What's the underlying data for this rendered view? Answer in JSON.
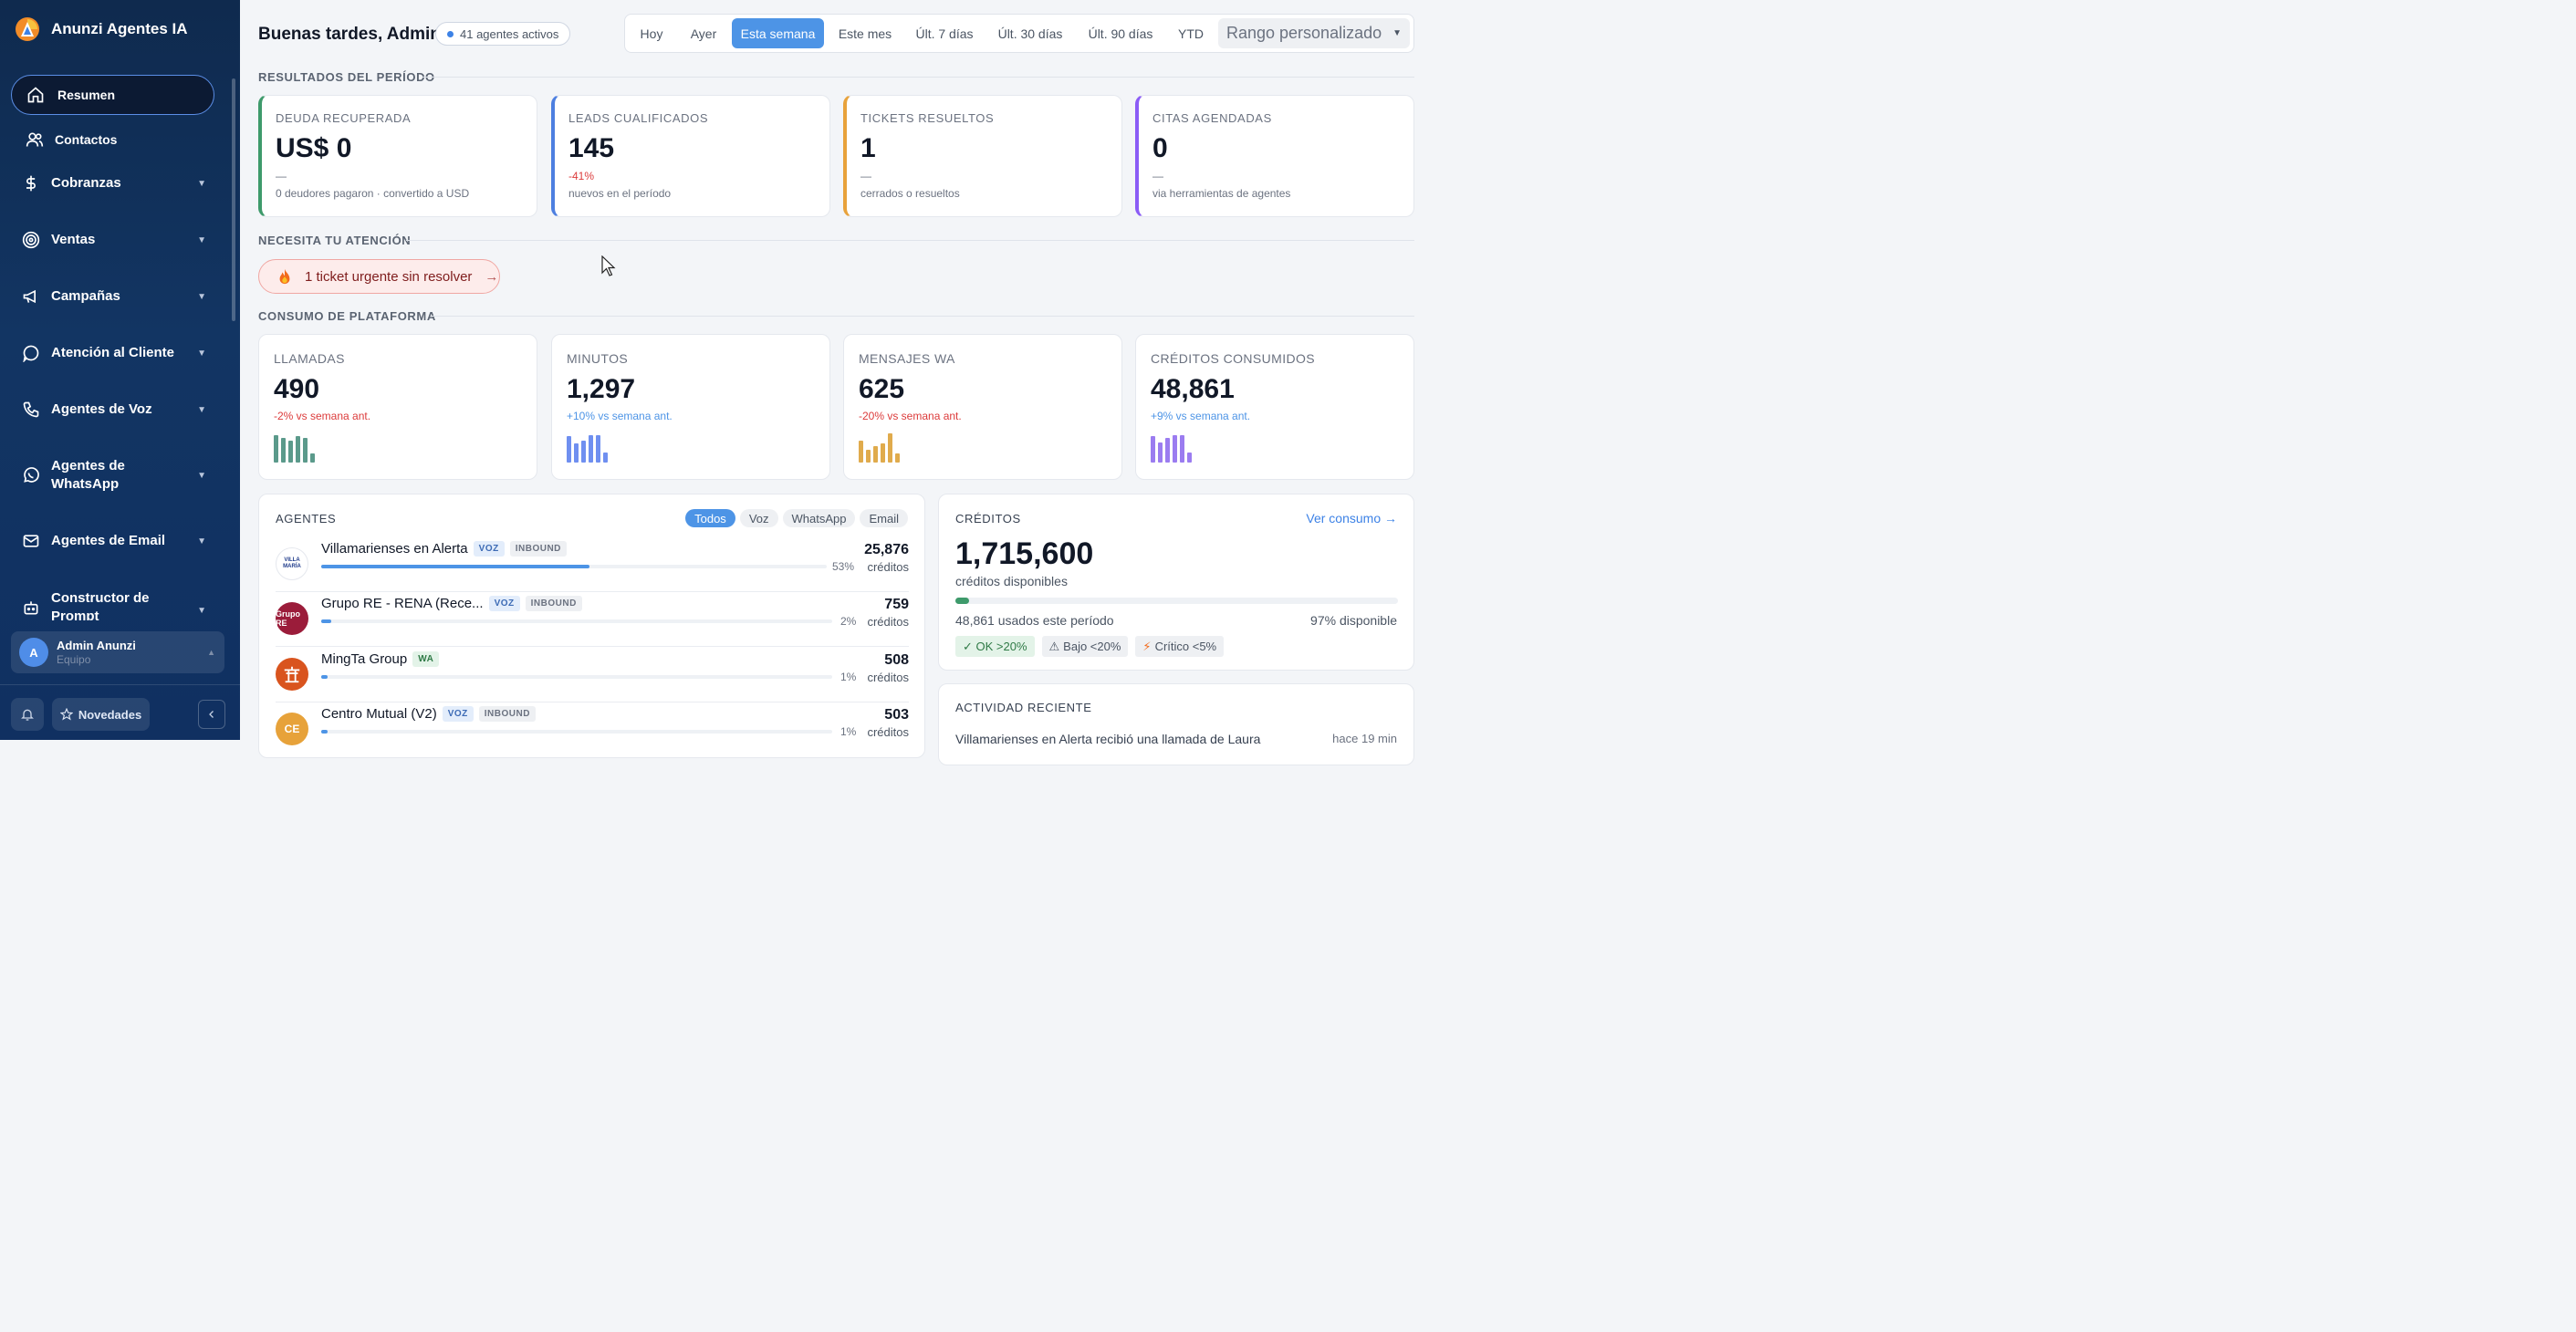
{
  "sidebar": {
    "brand": "Anunzi Agentes IA",
    "active_item": "Resumen",
    "items": [
      {
        "label": "Contactos",
        "icon": "users-icon"
      },
      {
        "label": "Cobranzas",
        "icon": "dollar-icon"
      },
      {
        "label": "Ventas",
        "icon": "target-icon"
      },
      {
        "label": "Campañas",
        "icon": "megaphone-icon"
      },
      {
        "label": "Atención al Cliente",
        "icon": "chat-bubble-icon"
      },
      {
        "label": "Agentes de Voz",
        "icon": "phone-icon"
      },
      {
        "label": "Agentes de WhatsApp",
        "icon": "whatsapp-icon"
      },
      {
        "label": "Agentes de Email",
        "icon": "mail-icon"
      },
      {
        "label": "Constructor de Prompt",
        "icon": "robot-icon"
      }
    ],
    "user": {
      "initial": "A",
      "name": "Admin Anunzi",
      "role": "Equipo"
    },
    "novedades": "Novedades"
  },
  "header": {
    "greeting": "Buenas tardes, Admin",
    "active_agents": "41 agentes activos",
    "ranges": [
      "Hoy",
      "Ayer",
      "Esta semana",
      "Este mes",
      "Últ. 7 días",
      "Últ. 30 días",
      "Últ. 90 días",
      "YTD"
    ],
    "active_range": "Esta semana",
    "custom_range": "Rango personalizado"
  },
  "sections": {
    "results": "RESULTADOS DEL PERÍODO",
    "attention": "NECESITA TU ATENCIÓN",
    "usage": "CONSUMO DE PLATAFORMA"
  },
  "kpis": [
    {
      "title": "DEUDA RECUPERADA",
      "value": "US$ 0",
      "delta": "—",
      "sub": "0 deudores pagaron · convertido a USD",
      "color": "#3e9a6b"
    },
    {
      "title": "LEADS CUALIFICADOS",
      "value": "145",
      "delta": "-41%",
      "sub": "nuevos en el período",
      "color": "#4d7fe0"
    },
    {
      "title": "TICKETS RESUELTOS",
      "value": "1",
      "delta": "—",
      "sub": "cerrados o resueltos",
      "color": "#e8a23b"
    },
    {
      "title": "CITAS AGENDADAS",
      "value": "0",
      "delta": "—",
      "sub": "via herramientas de agentes",
      "color": "#8b5cf6"
    }
  ],
  "attention": {
    "urgent": "1 ticket urgente sin resolver",
    "arrow": "→"
  },
  "usage": [
    {
      "title": "LLAMADAS",
      "value": "490",
      "delta": "-2% vs semana ant.",
      "trend": "down",
      "color": "#5b9a8b",
      "bars": [
        0.95,
        0.85,
        0.75,
        0.9,
        0.85,
        0.3
      ]
    },
    {
      "title": "MINUTOS",
      "value": "1,297",
      "delta": "+10% vs semana ant.",
      "trend": "up",
      "color": "#6f8ff0",
      "bars": [
        0.9,
        0.65,
        0.75,
        0.95,
        0.95,
        0.35
      ]
    },
    {
      "title": "MENSAJES WA",
      "value": "625",
      "delta": "-20% vs semana ant.",
      "trend": "down",
      "color": "#e0ab4c",
      "bars": [
        0.75,
        0.45,
        0.55,
        0.65,
        1.0,
        0.3
      ]
    },
    {
      "title": "CRÉDITOS CONSUMIDOS",
      "value": "48,861",
      "delta": "+9% vs semana ant.",
      "trend": "up",
      "color": "#9b7cf0",
      "bars": [
        0.9,
        0.7,
        0.85,
        0.95,
        0.95,
        0.35
      ]
    }
  ],
  "agents": {
    "title": "AGENTES",
    "filters": [
      "Todos",
      "Voz",
      "WhatsApp",
      "Email"
    ],
    "active_filter": "Todos",
    "unit": "créditos",
    "rows": [
      {
        "name": "Villamarienses en Alerta",
        "tags": [
          "VOZ",
          "INBOUND"
        ],
        "pct": "53%",
        "share": 0.53,
        "credits": "25,876",
        "logo": "VILLA MARÍA",
        "logo_bg": "#ffffff",
        "logo_fg": "#1e3a8a"
      },
      {
        "name": "Grupo RE - RENA (Rece...",
        "tags": [
          "VOZ",
          "INBOUND"
        ],
        "pct": "2%",
        "share": 0.02,
        "credits": "759",
        "logo": "Grupo RE",
        "logo_bg": "#9b1c3a",
        "logo_fg": "#ffffff"
      },
      {
        "name": "MingTa Group",
        "tags": [
          "WA"
        ],
        "pct": "1%",
        "share": 0.01,
        "credits": "508",
        "logo": "",
        "logo_bg": "#d9541e",
        "logo_fg": "#ffffff"
      },
      {
        "name": "Centro Mutual (V2)",
        "tags": [
          "VOZ",
          "INBOUND"
        ],
        "pct": "1%",
        "share": 0.01,
        "credits": "503",
        "logo": "CE",
        "logo_bg": "#e7a23a",
        "logo_fg": "#ffffff"
      }
    ]
  },
  "credits": {
    "title": "CRÉDITOS",
    "link": "Ver consumo →",
    "available": "1,715,600",
    "available_label": "créditos disponibles",
    "used_label": "48,861 usados este período",
    "available_pct": "97% disponible",
    "used_fraction": 0.03,
    "legend": [
      "✓ OK >20%",
      "Bajo <20%",
      "Crítico <5%"
    ]
  },
  "activity": {
    "title": "ACTIVIDAD RECIENTE",
    "item": "Villamarienses en Alerta recibió una llamada de Laura",
    "time": "hace 19 min"
  }
}
